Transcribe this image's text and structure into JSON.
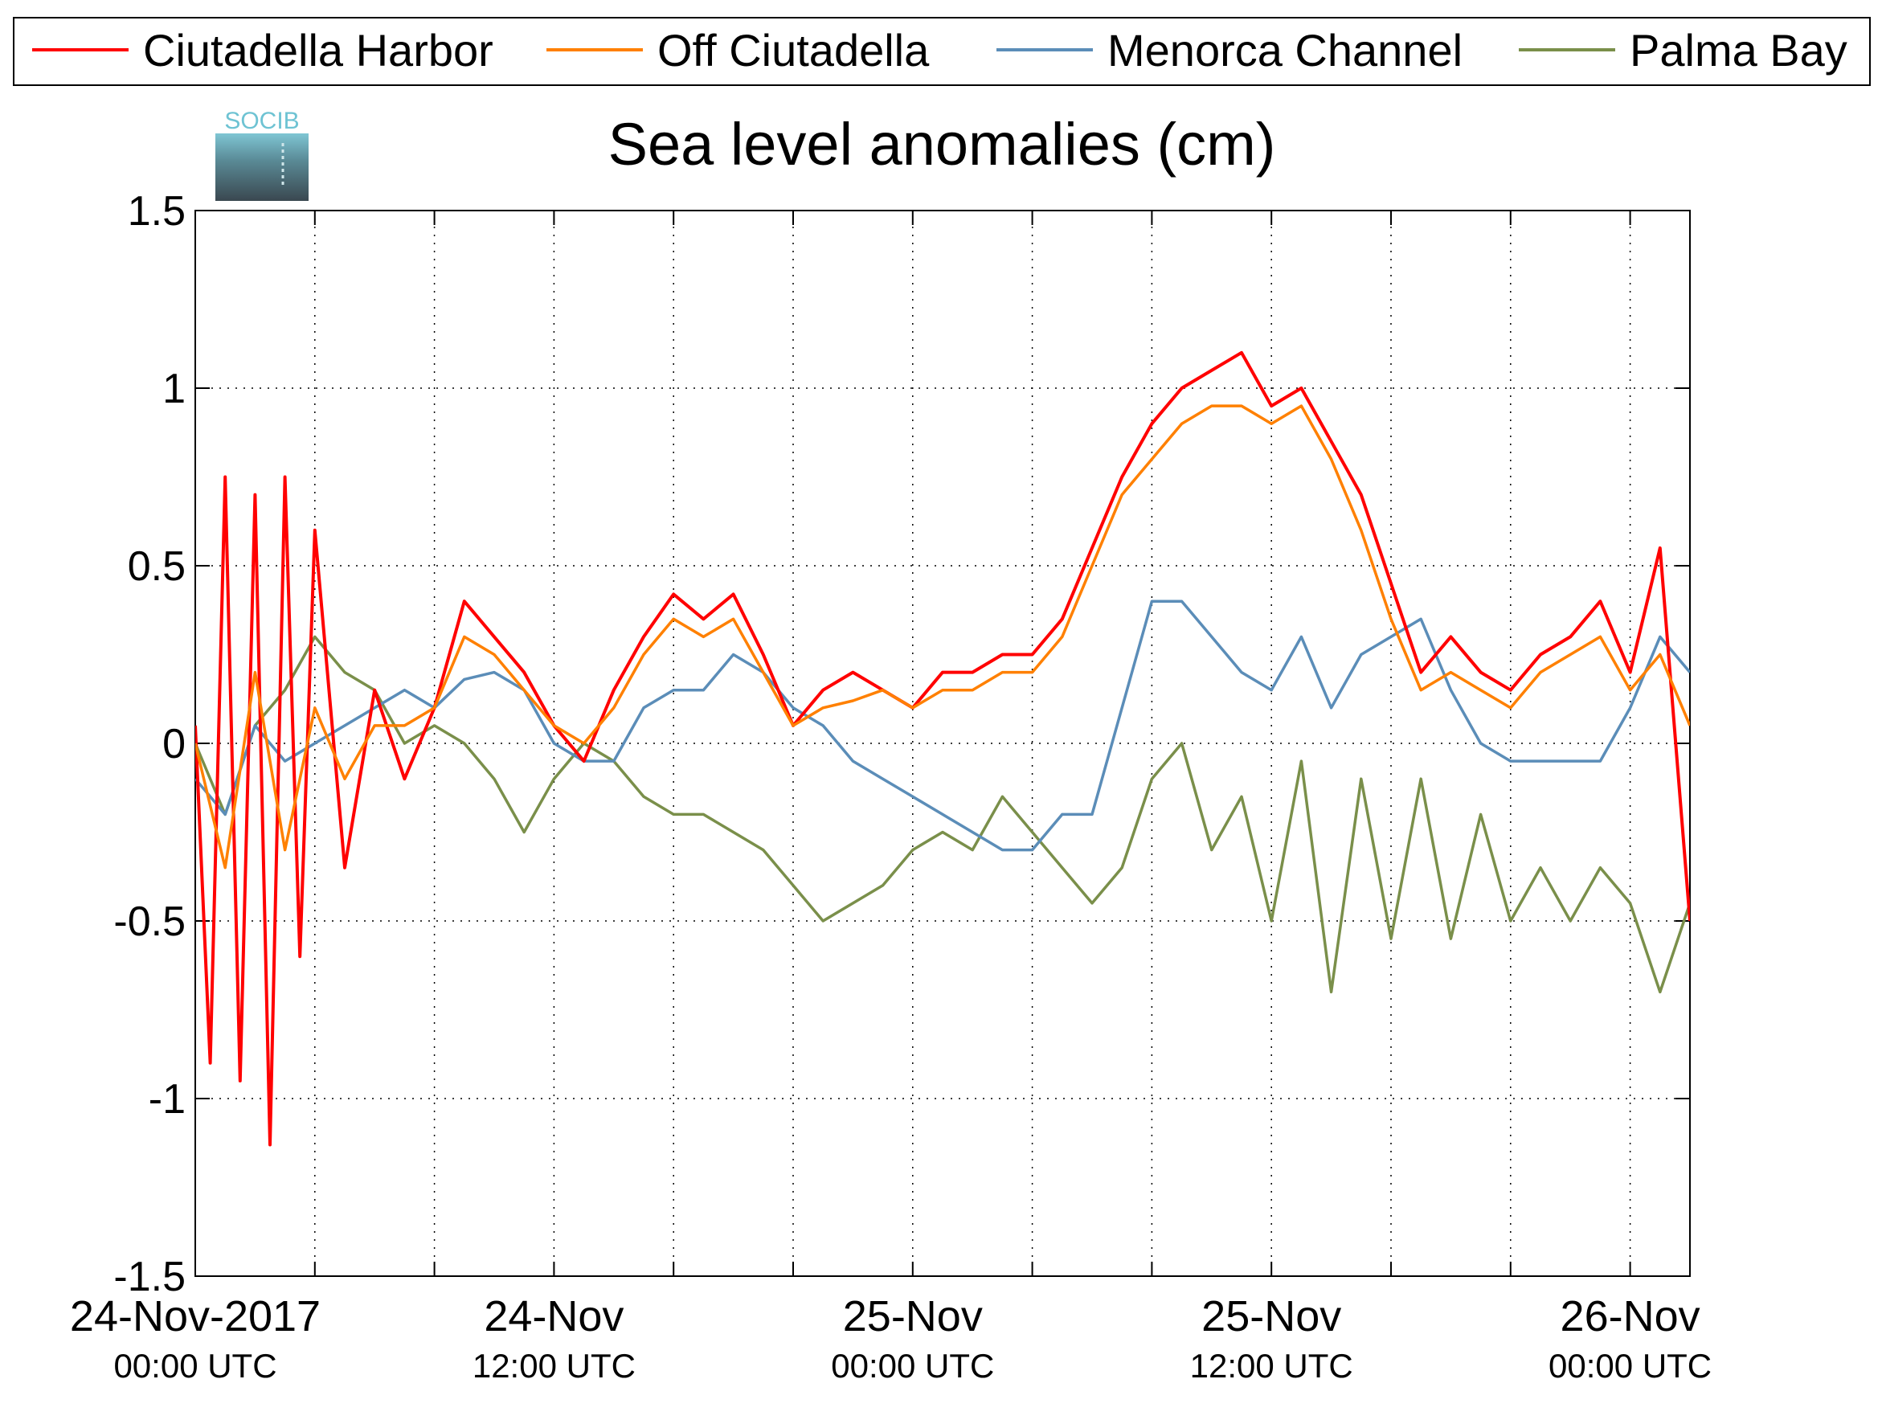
{
  "chart_data": {
    "type": "line",
    "title": "Sea level anomalies (cm)",
    "xlabel": "",
    "ylabel": "",
    "ylim": [
      -1.5,
      1.5
    ],
    "xlim": [
      "2017-11-24 00:00 UTC",
      "2017-11-26 02:00 UTC"
    ],
    "grid": true,
    "legend_position": "top",
    "logo_text": "SOCIB",
    "y_ticks": [
      "1.5",
      "1",
      "0.5",
      "0",
      "-0.5",
      "-1",
      "-1.5"
    ],
    "x_tick_labels": [
      {
        "date": "24-Nov-2017",
        "time": "00:00 UTC"
      },
      {
        "date": "24-Nov",
        "time": "12:00 UTC"
      },
      {
        "date": "25-Nov",
        "time": "00:00 UTC"
      },
      {
        "date": "25-Nov",
        "time": "12:00 UTC"
      },
      {
        "date": "26-Nov",
        "time": "00:00 UTC"
      }
    ],
    "series": [
      {
        "name": "Ciutadella Harbor",
        "color": "#ff0000",
        "x": [
          "2017-11-24 00:00",
          "2017-11-24 00:30",
          "2017-11-24 01:00",
          "2017-11-24 01:30",
          "2017-11-24 02:00",
          "2017-11-24 02:30",
          "2017-11-24 03:00",
          "2017-11-24 03:30",
          "2017-11-24 04:00",
          "2017-11-24 05:00",
          "2017-11-24 06:00",
          "2017-11-24 07:00",
          "2017-11-24 08:00",
          "2017-11-24 09:00",
          "2017-11-24 10:00",
          "2017-11-24 11:00",
          "2017-11-24 12:00",
          "2017-11-24 13:00",
          "2017-11-24 14:00",
          "2017-11-24 15:00",
          "2017-11-24 16:00",
          "2017-11-24 17:00",
          "2017-11-24 18:00",
          "2017-11-24 19:00",
          "2017-11-24 20:00",
          "2017-11-24 21:00",
          "2017-11-24 22:00",
          "2017-11-24 23:00",
          "2017-11-25 00:00",
          "2017-11-25 01:00",
          "2017-11-25 02:00",
          "2017-11-25 03:00",
          "2017-11-25 04:00",
          "2017-11-25 05:00",
          "2017-11-25 06:00",
          "2017-11-25 07:00",
          "2017-11-25 08:00",
          "2017-11-25 09:00",
          "2017-11-25 10:00",
          "2017-11-25 11:00",
          "2017-11-25 12:00",
          "2017-11-25 13:00",
          "2017-11-25 14:00",
          "2017-11-25 15:00",
          "2017-11-25 16:00",
          "2017-11-25 17:00",
          "2017-11-25 18:00",
          "2017-11-25 19:00",
          "2017-11-25 20:00",
          "2017-11-25 21:00",
          "2017-11-25 22:00",
          "2017-11-25 23:00",
          "2017-11-26 00:00",
          "2017-11-26 01:00",
          "2017-11-26 02:00"
        ],
        "values": [
          0.05,
          -0.9,
          0.75,
          -0.95,
          0.7,
          -1.13,
          0.75,
          -0.6,
          0.6,
          -0.35,
          0.15,
          -0.1,
          0.1,
          0.4,
          0.3,
          0.2,
          0.05,
          -0.05,
          0.15,
          0.3,
          0.42,
          0.35,
          0.42,
          0.25,
          0.05,
          0.15,
          0.2,
          0.15,
          0.1,
          0.2,
          0.2,
          0.25,
          0.25,
          0.35,
          0.55,
          0.75,
          0.9,
          1.0,
          1.05,
          1.1,
          0.95,
          1.0,
          0.85,
          0.7,
          0.45,
          0.2,
          0.3,
          0.2,
          0.15,
          0.25,
          0.3,
          0.4,
          0.2,
          0.55,
          -0.5
        ]
      },
      {
        "name": "Off Ciutadella",
        "color": "#ff8000",
        "x": [
          "2017-11-24 00:00",
          "2017-11-24 01:00",
          "2017-11-24 02:00",
          "2017-11-24 03:00",
          "2017-11-24 04:00",
          "2017-11-24 05:00",
          "2017-11-24 06:00",
          "2017-11-24 07:00",
          "2017-11-24 08:00",
          "2017-11-24 09:00",
          "2017-11-24 10:00",
          "2017-11-24 11:00",
          "2017-11-24 12:00",
          "2017-11-24 13:00",
          "2017-11-24 14:00",
          "2017-11-24 15:00",
          "2017-11-24 16:00",
          "2017-11-24 17:00",
          "2017-11-24 18:00",
          "2017-11-24 19:00",
          "2017-11-24 20:00",
          "2017-11-24 21:00",
          "2017-11-24 22:00",
          "2017-11-24 23:00",
          "2017-11-25 00:00",
          "2017-11-25 01:00",
          "2017-11-25 02:00",
          "2017-11-25 03:00",
          "2017-11-25 04:00",
          "2017-11-25 05:00",
          "2017-11-25 06:00",
          "2017-11-25 07:00",
          "2017-11-25 08:00",
          "2017-11-25 09:00",
          "2017-11-25 10:00",
          "2017-11-25 11:00",
          "2017-11-25 12:00",
          "2017-11-25 13:00",
          "2017-11-25 14:00",
          "2017-11-25 15:00",
          "2017-11-25 16:00",
          "2017-11-25 17:00",
          "2017-11-25 18:00",
          "2017-11-25 19:00",
          "2017-11-25 20:00",
          "2017-11-25 21:00",
          "2017-11-25 22:00",
          "2017-11-25 23:00",
          "2017-11-26 00:00",
          "2017-11-26 01:00",
          "2017-11-26 02:00"
        ],
        "values": [
          0.0,
          -0.35,
          0.2,
          -0.3,
          0.1,
          -0.1,
          0.05,
          0.05,
          0.1,
          0.3,
          0.25,
          0.15,
          0.05,
          0.0,
          0.1,
          0.25,
          0.35,
          0.3,
          0.35,
          0.2,
          0.05,
          0.1,
          0.12,
          0.15,
          0.1,
          0.15,
          0.15,
          0.2,
          0.2,
          0.3,
          0.5,
          0.7,
          0.8,
          0.9,
          0.95,
          0.95,
          0.9,
          0.95,
          0.8,
          0.6,
          0.35,
          0.15,
          0.2,
          0.15,
          0.1,
          0.2,
          0.25,
          0.3,
          0.15,
          0.25,
          0.05
        ]
      },
      {
        "name": "Menorca Channel",
        "color": "#5b8db8",
        "x": [
          "2017-11-24 00:00",
          "2017-11-24 01:00",
          "2017-11-24 02:00",
          "2017-11-24 03:00",
          "2017-11-24 04:00",
          "2017-11-24 05:00",
          "2017-11-24 06:00",
          "2017-11-24 07:00",
          "2017-11-24 08:00",
          "2017-11-24 09:00",
          "2017-11-24 10:00",
          "2017-11-24 11:00",
          "2017-11-24 12:00",
          "2017-11-24 13:00",
          "2017-11-24 14:00",
          "2017-11-24 15:00",
          "2017-11-24 16:00",
          "2017-11-24 17:00",
          "2017-11-24 18:00",
          "2017-11-24 19:00",
          "2017-11-24 20:00",
          "2017-11-24 21:00",
          "2017-11-24 22:00",
          "2017-11-24 23:00",
          "2017-11-25 00:00",
          "2017-11-25 01:00",
          "2017-11-25 02:00",
          "2017-11-25 03:00",
          "2017-11-25 04:00",
          "2017-11-25 05:00",
          "2017-11-25 06:00",
          "2017-11-25 07:00",
          "2017-11-25 08:00",
          "2017-11-25 09:00",
          "2017-11-25 10:00",
          "2017-11-25 11:00",
          "2017-11-25 12:00",
          "2017-11-25 13:00",
          "2017-11-25 14:00",
          "2017-11-25 15:00",
          "2017-11-25 16:00",
          "2017-11-25 17:00",
          "2017-11-25 18:00",
          "2017-11-25 19:00",
          "2017-11-25 20:00",
          "2017-11-25 21:00",
          "2017-11-25 22:00",
          "2017-11-25 23:00",
          "2017-11-26 00:00",
          "2017-11-26 01:00",
          "2017-11-26 02:00"
        ],
        "values": [
          -0.1,
          -0.2,
          0.05,
          -0.05,
          0.0,
          0.05,
          0.1,
          0.15,
          0.1,
          0.18,
          0.2,
          0.15,
          0.0,
          -0.05,
          -0.05,
          0.1,
          0.15,
          0.15,
          0.25,
          0.2,
          0.1,
          0.05,
          -0.05,
          -0.1,
          -0.15,
          -0.2,
          -0.25,
          -0.3,
          -0.3,
          -0.2,
          -0.2,
          0.1,
          0.4,
          0.4,
          0.3,
          0.2,
          0.15,
          0.3,
          0.1,
          0.25,
          0.3,
          0.35,
          0.15,
          0.0,
          -0.05,
          -0.05,
          -0.05,
          -0.05,
          0.1,
          0.3,
          0.2
        ]
      },
      {
        "name": "Palma Bay",
        "color": "#7a8f4a",
        "x": [
          "2017-11-24 00:00",
          "2017-11-24 01:00",
          "2017-11-24 02:00",
          "2017-11-24 03:00",
          "2017-11-24 04:00",
          "2017-11-24 05:00",
          "2017-11-24 06:00",
          "2017-11-24 07:00",
          "2017-11-24 08:00",
          "2017-11-24 09:00",
          "2017-11-24 10:00",
          "2017-11-24 11:00",
          "2017-11-24 12:00",
          "2017-11-24 13:00",
          "2017-11-24 14:00",
          "2017-11-24 15:00",
          "2017-11-24 16:00",
          "2017-11-24 17:00",
          "2017-11-24 18:00",
          "2017-11-24 19:00",
          "2017-11-24 20:00",
          "2017-11-24 21:00",
          "2017-11-24 22:00",
          "2017-11-24 23:00",
          "2017-11-25 00:00",
          "2017-11-25 01:00",
          "2017-11-25 02:00",
          "2017-11-25 03:00",
          "2017-11-25 04:00",
          "2017-11-25 05:00",
          "2017-11-25 06:00",
          "2017-11-25 07:00",
          "2017-11-25 08:00",
          "2017-11-25 09:00",
          "2017-11-25 10:00",
          "2017-11-25 11:00",
          "2017-11-25 12:00",
          "2017-11-25 13:00",
          "2017-11-25 14:00",
          "2017-11-25 15:00",
          "2017-11-25 16:00",
          "2017-11-25 17:00",
          "2017-11-25 18:00",
          "2017-11-25 19:00",
          "2017-11-25 20:00",
          "2017-11-25 21:00",
          "2017-11-25 22:00",
          "2017-11-25 23:00",
          "2017-11-26 00:00",
          "2017-11-26 01:00",
          "2017-11-26 02:00"
        ],
        "values": [
          0.0,
          -0.2,
          0.05,
          0.15,
          0.3,
          0.2,
          0.15,
          0.0,
          0.05,
          0.0,
          -0.1,
          -0.25,
          -0.1,
          0.0,
          -0.05,
          -0.15,
          -0.2,
          -0.2,
          -0.25,
          -0.3,
          -0.4,
          -0.5,
          -0.45,
          -0.4,
          -0.3,
          -0.25,
          -0.3,
          -0.15,
          -0.25,
          -0.35,
          -0.45,
          -0.35,
          -0.1,
          0.0,
          -0.3,
          -0.15,
          -0.5,
          -0.05,
          -0.7,
          -0.1,
          -0.55,
          -0.1,
          -0.55,
          -0.2,
          -0.5,
          -0.35,
          -0.5,
          -0.35,
          -0.45,
          -0.7,
          -0.45
        ]
      }
    ]
  }
}
